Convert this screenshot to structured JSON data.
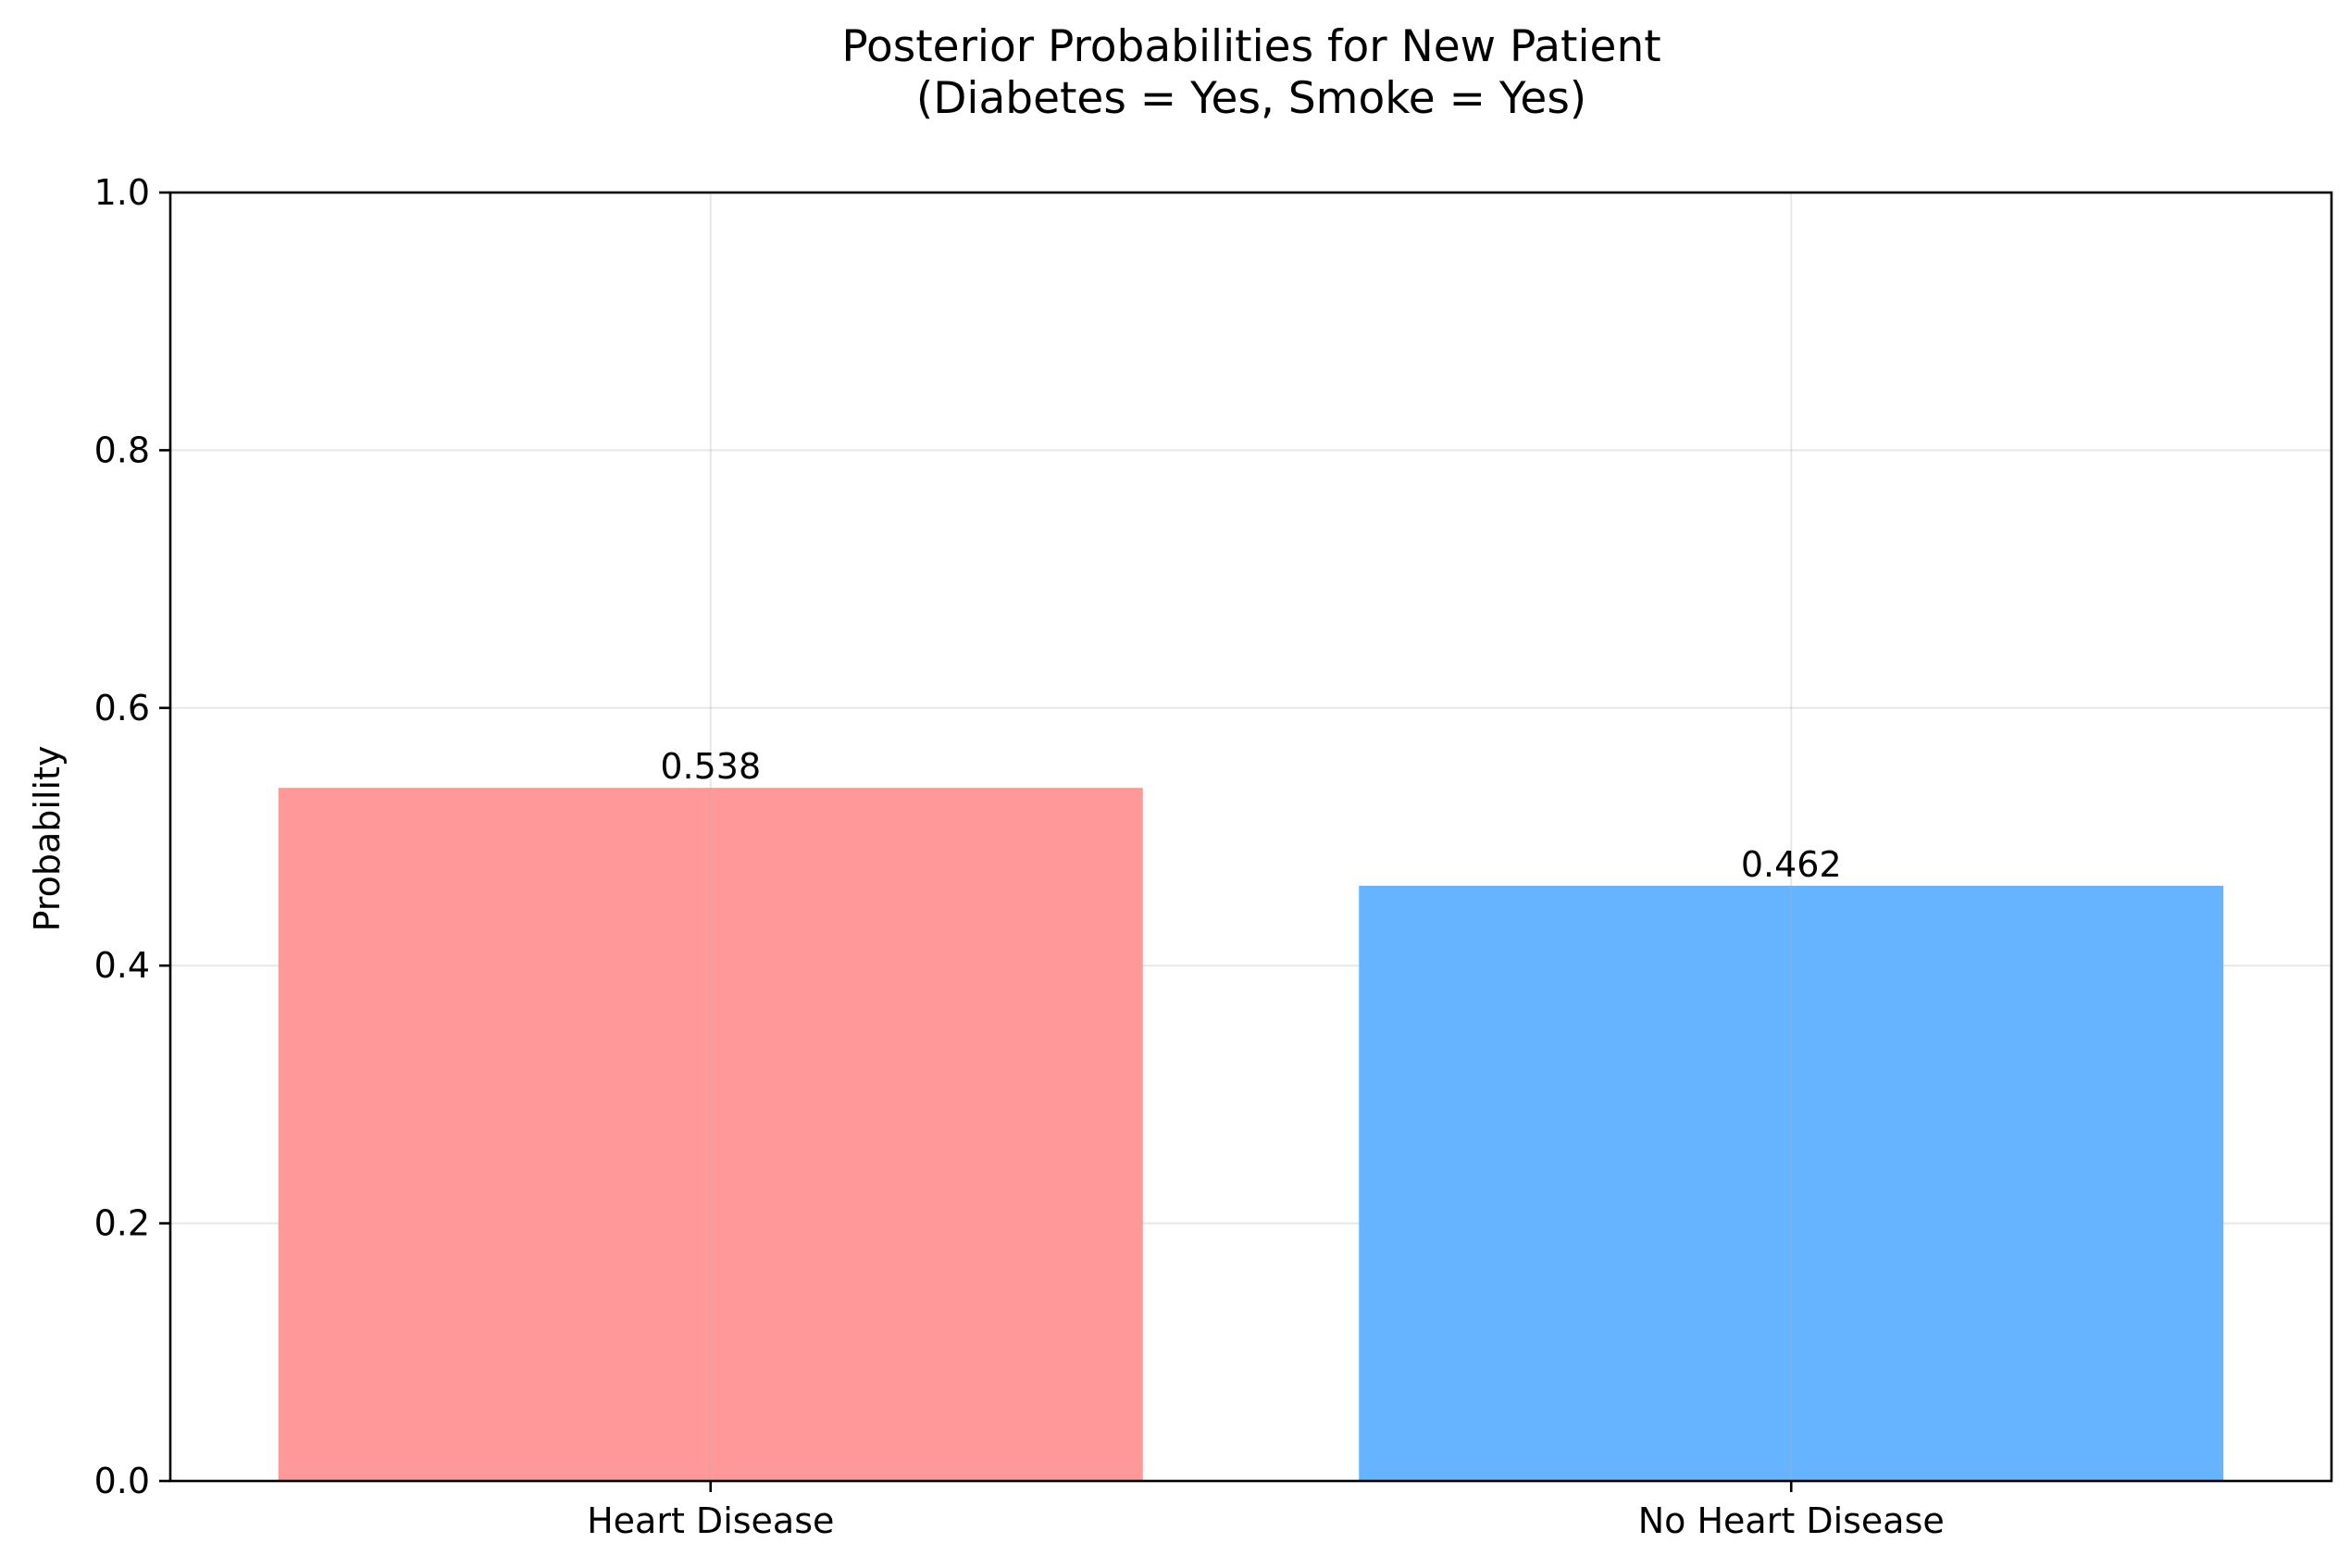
{
  "chart_data": {
    "type": "bar",
    "title": "Posterior Probabilities for New Patient",
    "subtitle": "(Diabetes = Yes, Smoke = Yes)",
    "xlabel": "",
    "ylabel": "Probability",
    "categories": [
      "Heart Disease",
      "No Heart Disease"
    ],
    "values": [
      0.538,
      0.462
    ],
    "value_labels": [
      "0.538",
      "0.462"
    ],
    "colors": [
      "#ff9999",
      "#66b3ff"
    ],
    "ylim": [
      0,
      1.0
    ],
    "yticks": [
      0.0,
      0.2,
      0.4,
      0.6,
      0.8,
      1.0
    ],
    "ytick_labels": [
      "0.0",
      "0.2",
      "0.4",
      "0.6",
      "0.8",
      "1.0"
    ],
    "grid": true,
    "legend": "none"
  }
}
